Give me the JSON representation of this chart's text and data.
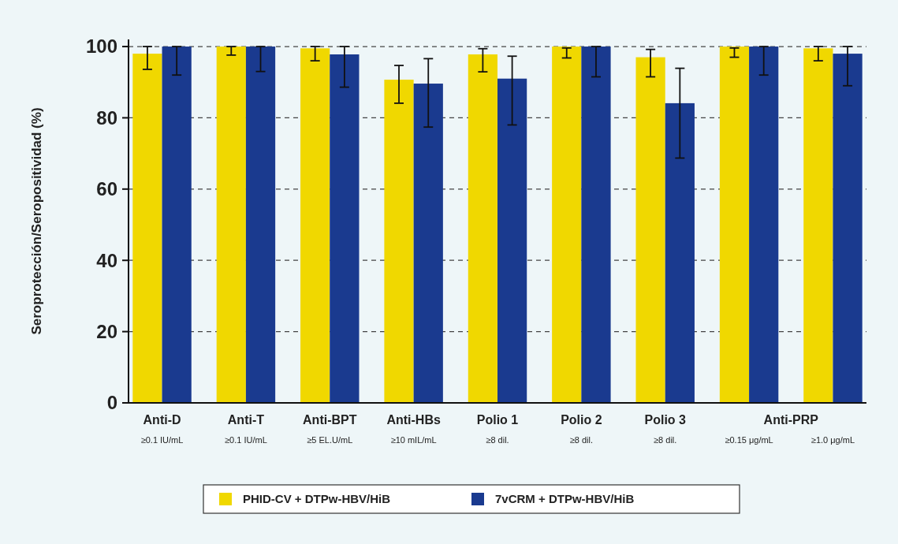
{
  "chart_data": {
    "type": "bar",
    "ylabel": "Seroprotección/Seropositividad (%)",
    "categories": [
      "≥0.1 IU/mL",
      "≥0.1 IU/mL",
      "≥5 EL.U/mL",
      "≥10 mIL/mL",
      "≥8 dil.",
      "≥8 dil.",
      "≥8 dil.",
      "≥0.15 μg/mL",
      "≥1.0 μg/mL"
    ],
    "annotations": [
      "Anti-D",
      "Anti-T",
      "Anti-BPT",
      "Anti-HBs",
      "Polio 1",
      "Polio 2",
      "Polio 3",
      "Anti-PRP"
    ],
    "series": [
      {
        "name": "PHID-CV + DTPw-HBV/HiB",
        "color": "#f0d800",
        "values": [
          98,
          100,
          99.5,
          90.7,
          97.8,
          100,
          97,
          100,
          99.5
        ],
        "errors": [
          [
            93.6,
            100
          ],
          [
            97.6,
            100
          ],
          [
            96,
            100
          ],
          [
            84.1,
            94.7
          ],
          [
            92.9,
            99.4
          ],
          [
            96.8,
            99.6
          ],
          [
            91.5,
            99.2
          ],
          [
            97,
            99.6
          ],
          [
            96,
            100
          ]
        ]
      },
      {
        "name": "7vCRM + DTPw-HBV/HiB",
        "color": "#1a3a8f",
        "values": [
          100,
          100,
          97.8,
          89.6,
          91,
          100,
          84.1,
          100,
          98
        ],
        "errors": [
          [
            92,
            100
          ],
          [
            93,
            100
          ],
          [
            88.6,
            100
          ],
          [
            77.4,
            96.6
          ],
          [
            78,
            97.3
          ],
          [
            91.5,
            100
          ],
          [
            68.7,
            93.9
          ],
          [
            92,
            100
          ],
          [
            89,
            100
          ]
        ]
      }
    ],
    "ylim": [
      0,
      102
    ],
    "yticks": [
      0,
      20,
      40,
      60,
      80,
      100
    ],
    "grid": "y",
    "legend": "bottom"
  }
}
